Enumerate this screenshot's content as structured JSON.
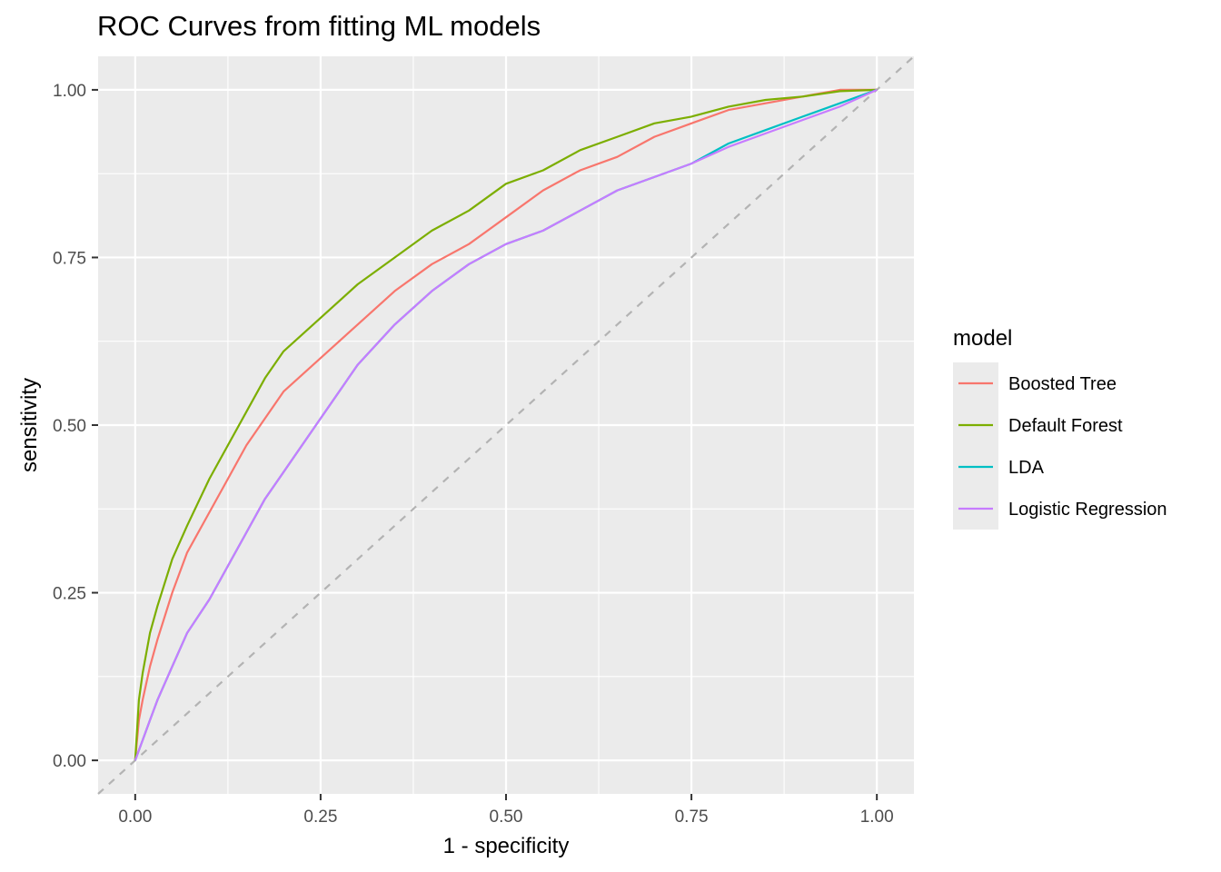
{
  "chart_data": {
    "type": "line",
    "title": "ROC Curves from fitting ML models",
    "xlabel": "1 - specificity",
    "ylabel": "sensitivity",
    "xlim": [
      -0.05,
      1.05
    ],
    "ylim": [
      -0.05,
      1.05
    ],
    "x_ticks": [
      0.0,
      0.25,
      0.5,
      0.75,
      1.0
    ],
    "x_tick_labels": [
      "0.00",
      "0.25",
      "0.50",
      "0.75",
      "1.00"
    ],
    "y_ticks": [
      0.0,
      0.25,
      0.5,
      0.75,
      1.0
    ],
    "y_tick_labels": [
      "0.00",
      "0.25",
      "0.50",
      "0.75",
      "1.00"
    ],
    "grid": true,
    "legend": {
      "title": "model",
      "position": "right"
    },
    "reference_line": {
      "x": [
        0,
        1
      ],
      "y": [
        0,
        1
      ],
      "style": "dashed",
      "color": "#b3b3b3"
    },
    "series": [
      {
        "name": "Boosted Tree",
        "color": "#F8766D",
        "x": [
          0,
          0.005,
          0.01,
          0.02,
          0.03,
          0.05,
          0.07,
          0.1,
          0.125,
          0.15,
          0.175,
          0.2,
          0.25,
          0.3,
          0.35,
          0.4,
          0.45,
          0.5,
          0.55,
          0.6,
          0.65,
          0.7,
          0.75,
          0.8,
          0.85,
          0.9,
          0.95,
          1.0
        ],
        "y": [
          0,
          0.06,
          0.09,
          0.14,
          0.18,
          0.25,
          0.31,
          0.37,
          0.42,
          0.47,
          0.51,
          0.55,
          0.6,
          0.65,
          0.7,
          0.74,
          0.77,
          0.81,
          0.85,
          0.88,
          0.9,
          0.93,
          0.95,
          0.97,
          0.98,
          0.99,
          1.0,
          1.0
        ]
      },
      {
        "name": "Default Forest",
        "color": "#7CAE00",
        "x": [
          0,
          0.005,
          0.01,
          0.02,
          0.03,
          0.05,
          0.07,
          0.1,
          0.125,
          0.15,
          0.175,
          0.2,
          0.25,
          0.3,
          0.35,
          0.4,
          0.45,
          0.5,
          0.55,
          0.6,
          0.65,
          0.7,
          0.75,
          0.8,
          0.85,
          0.9,
          0.95,
          1.0
        ],
        "y": [
          0,
          0.09,
          0.13,
          0.19,
          0.23,
          0.3,
          0.35,
          0.42,
          0.47,
          0.52,
          0.57,
          0.61,
          0.66,
          0.71,
          0.75,
          0.79,
          0.82,
          0.86,
          0.88,
          0.91,
          0.93,
          0.95,
          0.96,
          0.975,
          0.985,
          0.99,
          0.998,
          1.0
        ]
      },
      {
        "name": "LDA",
        "color": "#00BFC4",
        "x": [
          0,
          0.01,
          0.02,
          0.03,
          0.05,
          0.07,
          0.1,
          0.125,
          0.15,
          0.175,
          0.2,
          0.25,
          0.3,
          0.35,
          0.4,
          0.45,
          0.5,
          0.55,
          0.6,
          0.65,
          0.7,
          0.75,
          0.8,
          0.85,
          0.9,
          0.95,
          1.0
        ],
        "y": [
          0,
          0.03,
          0.06,
          0.09,
          0.14,
          0.19,
          0.24,
          0.29,
          0.34,
          0.39,
          0.43,
          0.51,
          0.59,
          0.65,
          0.7,
          0.74,
          0.77,
          0.79,
          0.82,
          0.85,
          0.87,
          0.89,
          0.92,
          0.94,
          0.96,
          0.98,
          1.0
        ]
      },
      {
        "name": "Logistic Regression",
        "color": "#C77CFF",
        "x": [
          0,
          0.01,
          0.02,
          0.03,
          0.05,
          0.07,
          0.1,
          0.125,
          0.15,
          0.175,
          0.2,
          0.25,
          0.3,
          0.35,
          0.4,
          0.45,
          0.5,
          0.55,
          0.6,
          0.65,
          0.7,
          0.75,
          0.8,
          0.85,
          0.9,
          0.95,
          1.0
        ],
        "y": [
          0,
          0.03,
          0.06,
          0.09,
          0.14,
          0.19,
          0.24,
          0.29,
          0.34,
          0.39,
          0.43,
          0.51,
          0.59,
          0.65,
          0.7,
          0.74,
          0.77,
          0.79,
          0.82,
          0.85,
          0.87,
          0.89,
          0.915,
          0.935,
          0.955,
          0.975,
          1.0
        ]
      }
    ]
  }
}
